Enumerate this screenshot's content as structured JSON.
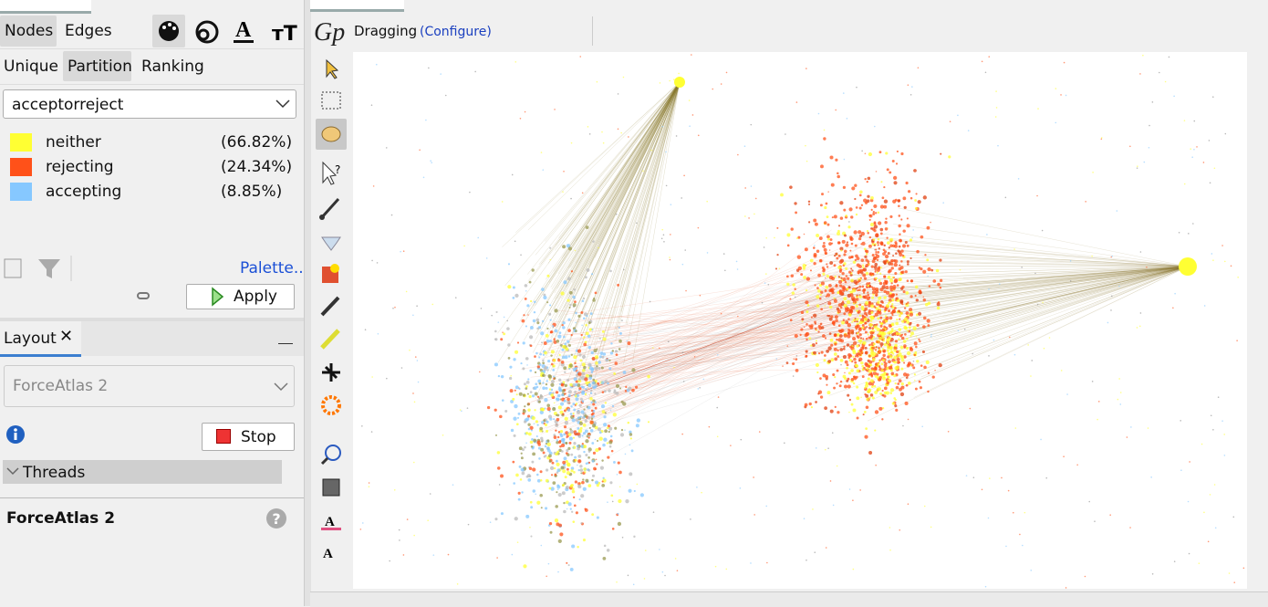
{
  "tabs": {
    "nodes": "Nodes",
    "edges": "Edges"
  },
  "modes": [
    "Unique",
    "Partition",
    "Ranking"
  ],
  "attribute": "acceptorreject",
  "partition": [
    {
      "label": "neither",
      "percent": "(66.82%)",
      "color": "#ffff33"
    },
    {
      "label": "rejecting",
      "percent": "(24.34%)",
      "color": "#ff5119"
    },
    {
      "label": "accepting",
      "percent": "(8.85%)",
      "color": "#86c8ff"
    }
  ],
  "palette": "Palette...",
  "apply": "Apply",
  "layout": {
    "tab": "Layout",
    "algorithm": "ForceAtlas 2",
    "stop": "Stop",
    "section": "Threads",
    "title": "ForceAtlas 2"
  },
  "graph": {
    "tool": "Dragging",
    "configure": "(Configure)"
  }
}
